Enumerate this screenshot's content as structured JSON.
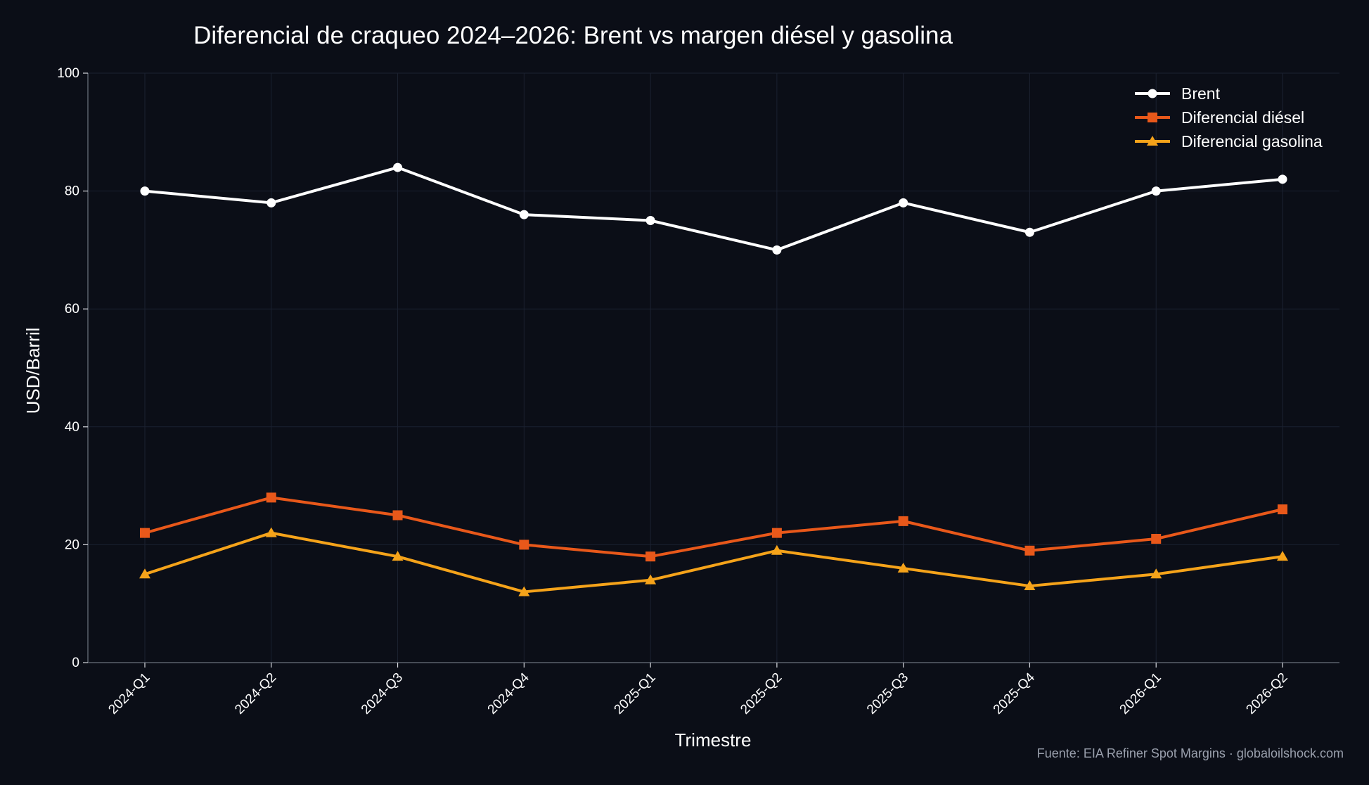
{
  "chart_data": {
    "type": "line",
    "title": "Diferencial de craqueo 2024–2026: Brent vs margen diésel y gasolina",
    "xlabel": "Trimestre",
    "ylabel": "USD/Barril",
    "categories": [
      "2024-Q1",
      "2024-Q2",
      "2024-Q3",
      "2024-Q4",
      "2025-Q1",
      "2025-Q2",
      "2025-Q3",
      "2025-Q4",
      "2026-Q1",
      "2026-Q2"
    ],
    "ylim": [
      0,
      100
    ],
    "yticks": [
      0,
      20,
      40,
      60,
      80,
      100
    ],
    "grid": true,
    "legend_position": "top-right",
    "series": [
      {
        "name": "Brent",
        "color": "#ffffff",
        "marker": "circle",
        "values": [
          80,
          78,
          84,
          76,
          75,
          70,
          78,
          73,
          80,
          82
        ]
      },
      {
        "name": "Diferencial diésel",
        "color": "#e8581a",
        "marker": "square",
        "values": [
          22,
          28,
          25,
          20,
          18,
          22,
          24,
          19,
          21,
          26
        ]
      },
      {
        "name": "Diferencial gasolina",
        "color": "#f5a31a",
        "marker": "triangle",
        "values": [
          15,
          22,
          18,
          12,
          14,
          19,
          16,
          13,
          15,
          18
        ]
      }
    ],
    "source": "Fuente: EIA Refiner Spot Margins · globaloilshock.com"
  }
}
